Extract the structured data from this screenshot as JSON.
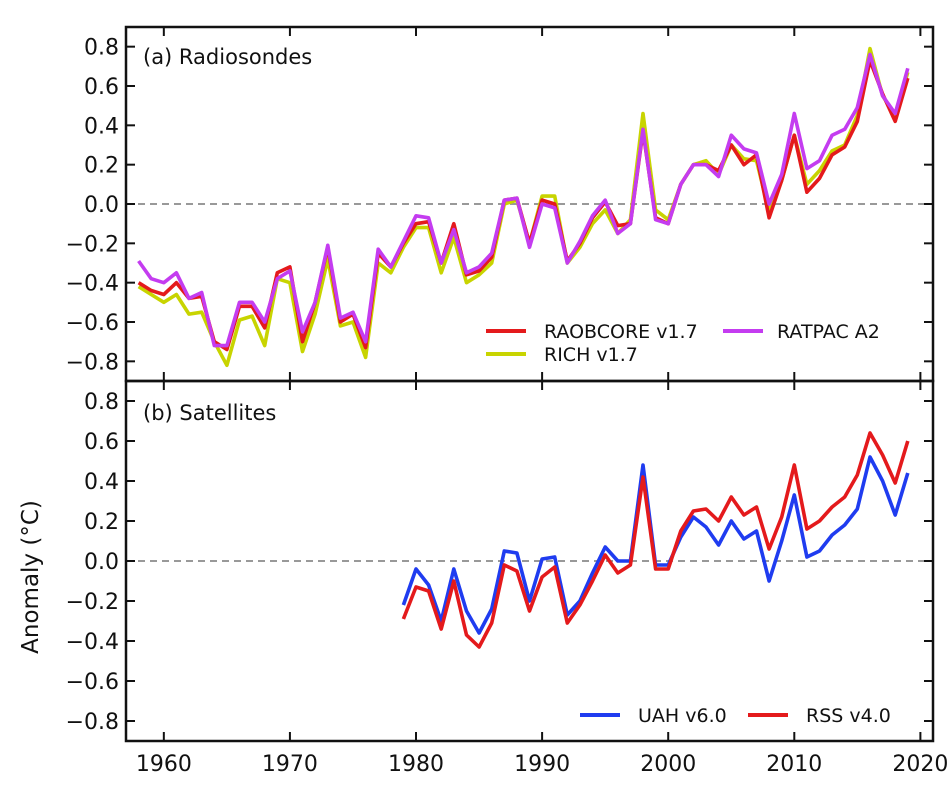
{
  "chart_data": [
    {
      "type": "line",
      "title": "(a) Radiosondes",
      "ylabel": "Anomaly (°C)",
      "xlabel": "",
      "xlim": [
        1957,
        2021
      ],
      "ylim": [
        -0.9,
        0.9
      ],
      "yticks": [
        -0.8,
        -0.6,
        -0.4,
        -0.2,
        0.0,
        0.2,
        0.4,
        0.6,
        0.8
      ],
      "ytick_labels": [
        "−0.8",
        "−0.6",
        "−0.4",
        "−0.2",
        "0.0",
        "0.2",
        "0.4",
        "0.6",
        "0.8"
      ],
      "zero_line": true,
      "legend_position": "lower-right",
      "series": [
        {
          "name": "RICH v1.7",
          "color": "#c8d400",
          "x": [
            1958,
            1959,
            1960,
            1961,
            1962,
            1963,
            1964,
            1965,
            1966,
            1967,
            1968,
            1969,
            1970,
            1971,
            1972,
            1973,
            1974,
            1975,
            1976,
            1977,
            1978,
            1979,
            1980,
            1981,
            1982,
            1983,
            1984,
            1985,
            1986,
            1987,
            1988,
            1989,
            1990,
            1991,
            1992,
            1993,
            1994,
            1995,
            1996,
            1997,
            1998,
            1999,
            2000,
            2001,
            2002,
            2003,
            2004,
            2005,
            2006,
            2007,
            2008,
            2009,
            2010,
            2011,
            2012,
            2013,
            2014,
            2015,
            2016,
            2017,
            2018,
            2019
          ],
          "y": [
            -0.42,
            -0.46,
            -0.5,
            -0.46,
            -0.56,
            -0.55,
            -0.7,
            -0.82,
            -0.59,
            -0.57,
            -0.72,
            -0.38,
            -0.4,
            -0.75,
            -0.56,
            -0.28,
            -0.62,
            -0.6,
            -0.78,
            -0.3,
            -0.35,
            -0.22,
            -0.12,
            -0.12,
            -0.35,
            -0.17,
            -0.4,
            -0.36,
            -0.3,
            0.0,
            0.02,
            -0.2,
            0.04,
            0.04,
            -0.3,
            -0.22,
            -0.1,
            -0.03,
            -0.15,
            -0.08,
            0.46,
            -0.03,
            -0.08,
            0.1,
            0.2,
            0.22,
            0.15,
            0.3,
            0.23,
            0.22,
            -0.04,
            0.12,
            0.35,
            0.1,
            0.17,
            0.27,
            0.3,
            0.45,
            0.79,
            0.55,
            0.45,
            0.67
          ]
        },
        {
          "name": "RAOBCORE v1.7",
          "color": "#e41a1c",
          "x": [
            1958,
            1959,
            1960,
            1961,
            1962,
            1963,
            1964,
            1965,
            1966,
            1967,
            1968,
            1969,
            1970,
            1971,
            1972,
            1973,
            1974,
            1975,
            1976,
            1977,
            1978,
            1979,
            1980,
            1981,
            1982,
            1983,
            1984,
            1985,
            1986,
            1987,
            1988,
            1989,
            1990,
            1991,
            1992,
            1993,
            1994,
            1995,
            1996,
            1997,
            1998,
            1999,
            2000,
            2001,
            2002,
            2003,
            2004,
            2005,
            2006,
            2007,
            2008,
            2009,
            2010,
            2011,
            2012,
            2013,
            2014,
            2015,
            2016,
            2017,
            2018,
            2019
          ],
          "y": [
            -0.4,
            -0.44,
            -0.46,
            -0.4,
            -0.48,
            -0.47,
            -0.7,
            -0.74,
            -0.52,
            -0.52,
            -0.63,
            -0.35,
            -0.32,
            -0.7,
            -0.5,
            -0.22,
            -0.6,
            -0.56,
            -0.73,
            -0.25,
            -0.32,
            -0.2,
            -0.1,
            -0.09,
            -0.3,
            -0.1,
            -0.36,
            -0.34,
            -0.27,
            0.02,
            0.03,
            -0.2,
            0.02,
            0.0,
            -0.29,
            -0.2,
            -0.07,
            0.01,
            -0.11,
            -0.1,
            0.37,
            -0.07,
            -0.1,
            0.1,
            0.2,
            0.2,
            0.17,
            0.3,
            0.2,
            0.25,
            -0.07,
            0.12,
            0.35,
            0.06,
            0.13,
            0.25,
            0.29,
            0.42,
            0.73,
            0.56,
            0.42,
            0.64
          ]
        },
        {
          "name": "RATPAC A2",
          "color": "#c43cf0",
          "x": [
            1958,
            1959,
            1960,
            1961,
            1962,
            1963,
            1964,
            1965,
            1966,
            1967,
            1968,
            1969,
            1970,
            1971,
            1972,
            1973,
            1974,
            1975,
            1976,
            1977,
            1978,
            1979,
            1980,
            1981,
            1982,
            1983,
            1984,
            1985,
            1986,
            1987,
            1988,
            1989,
            1990,
            1991,
            1992,
            1993,
            1994,
            1995,
            1996,
            1997,
            1998,
            1999,
            2000,
            2001,
            2002,
            2003,
            2004,
            2005,
            2006,
            2007,
            2008,
            2009,
            2010,
            2011,
            2012,
            2013,
            2014,
            2015,
            2016,
            2017,
            2018,
            2019
          ],
          "y": [
            -0.29,
            -0.38,
            -0.4,
            -0.35,
            -0.48,
            -0.45,
            -0.72,
            -0.72,
            -0.5,
            -0.5,
            -0.6,
            -0.38,
            -0.34,
            -0.65,
            -0.5,
            -0.21,
            -0.58,
            -0.55,
            -0.7,
            -0.23,
            -0.32,
            -0.19,
            -0.06,
            -0.07,
            -0.3,
            -0.13,
            -0.35,
            -0.32,
            -0.25,
            0.02,
            0.03,
            -0.22,
            0.0,
            -0.02,
            -0.3,
            -0.19,
            -0.06,
            0.02,
            -0.15,
            -0.1,
            0.38,
            -0.08,
            -0.1,
            0.1,
            0.2,
            0.2,
            0.14,
            0.35,
            0.28,
            0.26,
            0.0,
            0.15,
            0.46,
            0.18,
            0.22,
            0.35,
            0.38,
            0.49,
            0.76,
            0.55,
            0.46,
            0.69
          ]
        }
      ]
    },
    {
      "type": "line",
      "title": "(b) Satellites",
      "ylabel": "Anomaly (°C)",
      "xlabel": "",
      "xlim": [
        1957,
        2021
      ],
      "ylim": [
        -0.9,
        0.9
      ],
      "xticks": [
        1960,
        1970,
        1980,
        1990,
        2000,
        2010,
        2020
      ],
      "yticks": [
        -0.8,
        -0.6,
        -0.4,
        -0.2,
        0.0,
        0.2,
        0.4,
        0.6,
        0.8
      ],
      "ytick_labels": [
        "−0.8",
        "−0.6",
        "−0.4",
        "−0.2",
        "0.0",
        "0.2",
        "0.4",
        "0.6",
        "0.8"
      ],
      "zero_line": true,
      "legend_position": "lower-right",
      "series": [
        {
          "name": "UAH v6.0",
          "color": "#1f3cf0",
          "x": [
            1979,
            1980,
            1981,
            1982,
            1983,
            1984,
            1985,
            1986,
            1987,
            1988,
            1989,
            1990,
            1991,
            1992,
            1993,
            1994,
            1995,
            1996,
            1997,
            1998,
            1999,
            2000,
            2001,
            2002,
            2003,
            2004,
            2005,
            2006,
            2007,
            2008,
            2009,
            2010,
            2011,
            2012,
            2013,
            2014,
            2015,
            2016,
            2017,
            2018,
            2019
          ],
          "y": [
            -0.22,
            -0.04,
            -0.12,
            -0.3,
            -0.04,
            -0.25,
            -0.36,
            -0.24,
            0.05,
            0.04,
            -0.2,
            0.01,
            0.02,
            -0.27,
            -0.2,
            -0.06,
            0.07,
            0.0,
            0.0,
            0.48,
            -0.02,
            -0.02,
            0.12,
            0.22,
            0.17,
            0.08,
            0.2,
            0.11,
            0.15,
            -0.1,
            0.1,
            0.33,
            0.02,
            0.05,
            0.13,
            0.18,
            0.26,
            0.52,
            0.4,
            0.23,
            0.44
          ]
        },
        {
          "name": "RSS v4.0",
          "color": "#e41a1c",
          "x": [
            1979,
            1980,
            1981,
            1982,
            1983,
            1984,
            1985,
            1986,
            1987,
            1988,
            1989,
            1990,
            1991,
            1992,
            1993,
            1994,
            1995,
            1996,
            1997,
            1998,
            1999,
            2000,
            2001,
            2002,
            2003,
            2004,
            2005,
            2006,
            2007,
            2008,
            2009,
            2010,
            2011,
            2012,
            2013,
            2014,
            2015,
            2016,
            2017,
            2018,
            2019
          ],
          "y": [
            -0.29,
            -0.13,
            -0.15,
            -0.34,
            -0.1,
            -0.37,
            -0.43,
            -0.31,
            -0.02,
            -0.05,
            -0.25,
            -0.08,
            -0.03,
            -0.31,
            -0.22,
            -0.1,
            0.03,
            -0.06,
            -0.02,
            0.42,
            -0.04,
            -0.04,
            0.15,
            0.25,
            0.26,
            0.2,
            0.32,
            0.23,
            0.27,
            0.06,
            0.22,
            0.48,
            0.16,
            0.2,
            0.27,
            0.32,
            0.43,
            0.64,
            0.53,
            0.39,
            0.6
          ]
        }
      ]
    }
  ]
}
